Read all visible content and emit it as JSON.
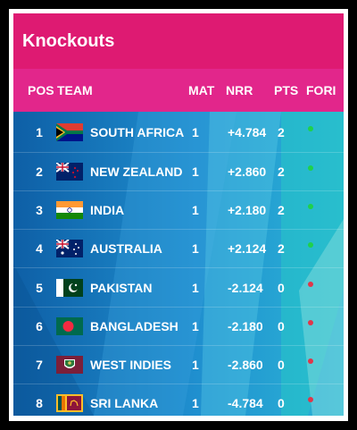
{
  "title": "Knockouts",
  "headers": {
    "pos": "POS",
    "team": "TEAM",
    "mat": "MAT",
    "nrr": "NRR",
    "pts": "PTS",
    "form": "FORI"
  },
  "colors": {
    "title_bg": "#de1a72",
    "header_bg": "#e2268b",
    "form_win": "#1fd14a",
    "form_loss": "#e0364a"
  },
  "rows": [
    {
      "pos": "1",
      "team": "SOUTH AFRICA",
      "flag": "south-africa-flag",
      "mat": "1",
      "nrr": "+4.784",
      "pts": "2",
      "form": "win"
    },
    {
      "pos": "2",
      "team": "NEW ZEALAND",
      "flag": "new-zealand-flag",
      "mat": "1",
      "nrr": "+2.860",
      "pts": "2",
      "form": "win"
    },
    {
      "pos": "3",
      "team": "INDIA",
      "flag": "india-flag",
      "mat": "1",
      "nrr": "+2.180",
      "pts": "2",
      "form": "win"
    },
    {
      "pos": "4",
      "team": "AUSTRALIA",
      "flag": "australia-flag",
      "mat": "1",
      "nrr": "+2.124",
      "pts": "2",
      "form": "win"
    },
    {
      "pos": "5",
      "team": "PAKISTAN",
      "flag": "pakistan-flag",
      "mat": "1",
      "nrr": "-2.124",
      "pts": "0",
      "form": "loss"
    },
    {
      "pos": "6",
      "team": "BANGLADESH",
      "flag": "bangladesh-flag",
      "mat": "1",
      "nrr": "-2.180",
      "pts": "0",
      "form": "loss"
    },
    {
      "pos": "7",
      "team": "WEST INDIES",
      "flag": "west-indies-flag",
      "mat": "1",
      "nrr": "-2.860",
      "pts": "0",
      "form": "loss"
    },
    {
      "pos": "8",
      "team": "SRI LANKA",
      "flag": "sri-lanka-flag",
      "mat": "1",
      "nrr": "-4.784",
      "pts": "0",
      "form": "loss"
    }
  ]
}
